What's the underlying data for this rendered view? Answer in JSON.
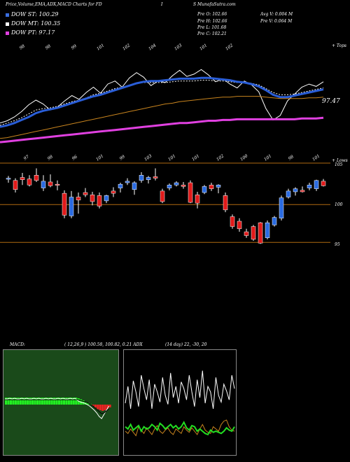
{
  "header": {
    "title": "Price,Volume,EMA,ADX,MACD Charts for FD",
    "separator": "I",
    "site": "S MunafaSutra.com"
  },
  "legend": [
    {
      "label": "DOW ST: 100.29",
      "color": "#3b6fe0"
    },
    {
      "label": "DOW MT: 100.35",
      "color": "#ffffff"
    },
    {
      "label": "DOW PT: 97.17",
      "color": "#e040e0"
    }
  ],
  "stats": {
    "open": "Pre  O: 102.66",
    "high": "Pre  H: 102.66",
    "low": "Pre  L: 101.68",
    "close": "Pre  C: 102.21",
    "avg_vol": "Avg V: 0.004  M",
    "prev_vol": "Pre  V: 0.064  M"
  },
  "ema_panel": {
    "top_label": "+ Tops",
    "bottom_label": "+ Lows",
    "last_value": "97.47",
    "top_ticks": [
      "98",
      "98",
      "99",
      "101",
      "102",
      "104",
      "103",
      "101",
      "102"
    ],
    "bottom_ticks": [
      "97",
      "98",
      "96",
      "101",
      "99",
      "103",
      "101",
      "101",
      "102",
      "100",
      "101",
      "98",
      "101"
    ]
  },
  "candle_panel": {
    "y_labels": [
      "105",
      "100",
      "95"
    ]
  },
  "macd_label": "MACD:",
  "macd_params": "( 12,26,9 ) 100.58,  100.82,  0.21 ADX",
  "adx_params": "(14  day) 22,  -30,  20",
  "colors": {
    "up": "#2a6ae0",
    "down": "#e01a1a",
    "ema_short": "#2a5ed8",
    "ema_pt": "#e040e0",
    "ema_long": "#c8841e"
  },
  "chart_data": [
    {
      "type": "candlestick",
      "title": "Price",
      "ylim": [
        93,
        106
      ],
      "y_ticks": [
        105,
        100,
        95
      ],
      "candles": [
        {
          "o": 103.4,
          "h": 103.8,
          "l": 102.9,
          "c": 103.5
        },
        {
          "o": 103.2,
          "h": 103.5,
          "l": 101.6,
          "c": 102.0
        },
        {
          "o": 103.6,
          "h": 104.2,
          "l": 102.6,
          "c": 103.3
        },
        {
          "o": 103.4,
          "h": 103.9,
          "l": 102.4,
          "c": 102.6
        },
        {
          "o": 103.9,
          "h": 104.8,
          "l": 103.0,
          "c": 103.2
        },
        {
          "o": 102.2,
          "h": 103.9,
          "l": 101.8,
          "c": 103.1
        },
        {
          "o": 103.0,
          "h": 104.0,
          "l": 102.3,
          "c": 102.5
        },
        {
          "o": 102.7,
          "h": 103.2,
          "l": 101.9,
          "c": 102.6
        },
        {
          "o": 101.5,
          "h": 101.9,
          "l": 98.2,
          "c": 98.6
        },
        {
          "o": 98.5,
          "h": 101.8,
          "l": 98.2,
          "c": 101.0
        },
        {
          "o": 101.0,
          "h": 101.6,
          "l": 98.8,
          "c": 100.6
        },
        {
          "o": 101.6,
          "h": 102.2,
          "l": 101.0,
          "c": 101.3
        },
        {
          "o": 101.3,
          "h": 101.7,
          "l": 99.9,
          "c": 100.4
        },
        {
          "o": 101.2,
          "h": 101.6,
          "l": 99.5,
          "c": 99.8
        },
        {
          "o": 100.5,
          "h": 101.3,
          "l": 100.2,
          "c": 101.2
        },
        {
          "o": 101.8,
          "h": 102.3,
          "l": 101.0,
          "c": 101.5
        },
        {
          "o": 102.2,
          "h": 102.9,
          "l": 101.6,
          "c": 102.7
        },
        {
          "o": 102.9,
          "h": 103.5,
          "l": 102.6,
          "c": 103.1
        },
        {
          "o": 102.0,
          "h": 103.1,
          "l": 101.3,
          "c": 102.9
        },
        {
          "o": 103.2,
          "h": 104.3,
          "l": 102.9,
          "c": 103.9
        },
        {
          "o": 103.3,
          "h": 103.8,
          "l": 102.8,
          "c": 103.6
        },
        {
          "o": 103.7,
          "h": 104.8,
          "l": 103.2,
          "c": 103.5
        },
        {
          "o": 101.8,
          "h": 102.1,
          "l": 100.2,
          "c": 100.4
        },
        {
          "o": 102.2,
          "h": 102.8,
          "l": 101.9,
          "c": 102.6
        },
        {
          "o": 102.6,
          "h": 103.1,
          "l": 102.4,
          "c": 102.9
        },
        {
          "o": 102.6,
          "h": 103.0,
          "l": 102.1,
          "c": 102.4
        },
        {
          "o": 102.9,
          "h": 103.2,
          "l": 100.2,
          "c": 100.3
        },
        {
          "o": 101.3,
          "h": 101.7,
          "l": 99.5,
          "c": 100.2
        },
        {
          "o": 101.6,
          "h": 102.6,
          "l": 101.4,
          "c": 102.4
        },
        {
          "o": 102.6,
          "h": 102.9,
          "l": 101.8,
          "c": 102.1
        },
        {
          "o": 102.3,
          "h": 102.7,
          "l": 101.5,
          "c": 102.6
        },
        {
          "o": 101.2,
          "h": 101.6,
          "l": 99.0,
          "c": 99.3
        },
        {
          "o": 98.4,
          "h": 98.7,
          "l": 96.8,
          "c": 97.1
        },
        {
          "o": 97.8,
          "h": 98.2,
          "l": 96.4,
          "c": 96.8
        },
        {
          "o": 96.4,
          "h": 96.8,
          "l": 95.6,
          "c": 95.9
        },
        {
          "o": 97.1,
          "h": 97.3,
          "l": 95.2,
          "c": 95.4
        },
        {
          "o": 97.6,
          "h": 97.7,
          "l": 94.8,
          "c": 94.9
        },
        {
          "o": 95.6,
          "h": 97.9,
          "l": 95.4,
          "c": 97.6
        },
        {
          "o": 97.3,
          "h": 98.5,
          "l": 97.1,
          "c": 98.3
        },
        {
          "o": 98.2,
          "h": 101.2,
          "l": 97.9,
          "c": 100.9
        },
        {
          "o": 101.0,
          "h": 102.1,
          "l": 100.8,
          "c": 101.8
        },
        {
          "o": 101.7,
          "h": 102.3,
          "l": 101.2,
          "c": 102.1
        },
        {
          "o": 101.9,
          "h": 102.4,
          "l": 101.6,
          "c": 101.7
        },
        {
          "o": 102.2,
          "h": 102.9,
          "l": 101.9,
          "c": 102.6
        },
        {
          "o": 102.1,
          "h": 103.3,
          "l": 101.8,
          "c": 103.2
        },
        {
          "o": 103.1,
          "h": 103.4,
          "l": 102.4,
          "c": 102.5
        }
      ]
    },
    {
      "type": "line",
      "title": "EMA",
      "series": [
        {
          "color": "#ffffff",
          "values": [
            96.5,
            96.8,
            97.3,
            98.0,
            98.9,
            99.5,
            99.0,
            98.2,
            98.6,
            99.4,
            100.1,
            99.6,
            100.5,
            101.2,
            100.4,
            101.6,
            102.0,
            101.2,
            102.4,
            103.1,
            102.5,
            101.4,
            102.0,
            101.8,
            102.7,
            103.4,
            102.6,
            102.9,
            103.5,
            102.8,
            101.9,
            102.3,
            101.6,
            101.1,
            102.0,
            101.5,
            100.6,
            98.4,
            96.9,
            97.5,
            99.4,
            100.3,
            101.2,
            101.6,
            101.3,
            101.9
          ]
        },
        {
          "color": "#ffffff",
          "values": [
            96.2,
            96.5,
            96.8,
            97.2,
            97.7,
            98.2,
            98.4,
            98.5,
            98.7,
            99.0,
            99.3,
            99.5,
            99.8,
            100.2,
            100.4,
            100.7,
            101.0,
            101.2,
            101.4,
            101.7,
            101.8,
            101.8,
            101.8,
            101.8,
            101.9,
            102.0,
            102.0,
            102.0,
            102.1,
            102.1,
            102.0,
            102.0,
            101.9,
            101.8,
            101.8,
            101.7,
            101.5,
            101.0,
            100.5,
            100.2,
            100.2,
            100.3,
            100.5,
            100.7,
            100.9,
            101.1
          ]
        },
        {
          "color": "#2a5ed8",
          "values": [
            96.0,
            96.2,
            96.5,
            96.9,
            97.3,
            97.8,
            98.1,
            98.3,
            98.5,
            98.8,
            99.1,
            99.4,
            99.7,
            100.0,
            100.2,
            100.5,
            100.8,
            101.1,
            101.4,
            101.7,
            101.9,
            102.0,
            102.0,
            102.1,
            102.2,
            102.3,
            102.3,
            102.3,
            102.4,
            102.4,
            102.3,
            102.2,
            102.1,
            101.9,
            101.8,
            101.6,
            101.3,
            100.8,
            100.2,
            99.9,
            99.9,
            100.1,
            100.3,
            100.5,
            100.7,
            100.9
          ]
        },
        {
          "color": "#c8841e",
          "values": [
            94.5,
            94.6,
            94.8,
            95.0,
            95.2,
            95.4,
            95.6,
            95.8,
            96.0,
            96.2,
            96.4,
            96.6,
            96.8,
            97.0,
            97.2,
            97.4,
            97.6,
            97.8,
            98.0,
            98.2,
            98.4,
            98.6,
            98.8,
            99.0,
            99.1,
            99.3,
            99.4,
            99.5,
            99.6,
            99.7,
            99.8,
            99.9,
            99.9,
            100.0,
            100.0,
            100.0,
            100.0,
            99.9,
            99.8,
            99.7,
            99.7,
            99.7,
            99.7,
            99.8,
            99.8,
            99.9
          ]
        },
        {
          "color": "#e040e0",
          "values": [
            94.0,
            94.1,
            94.2,
            94.3,
            94.4,
            94.5,
            94.6,
            94.7,
            94.8,
            94.9,
            95.0,
            95.1,
            95.2,
            95.3,
            95.4,
            95.5,
            95.6,
            95.7,
            95.8,
            95.9,
            96.0,
            96.1,
            96.2,
            96.3,
            96.4,
            96.5,
            96.5,
            96.6,
            96.7,
            96.8,
            96.8,
            96.9,
            96.9,
            97.0,
            97.0,
            97.0,
            97.0,
            97.0,
            97.0,
            97.0,
            97.0,
            97.0,
            97.1,
            97.1,
            97.1,
            97.2
          ]
        }
      ]
    },
    {
      "type": "bar",
      "title": "MACD",
      "histogram": [
        2,
        2,
        2,
        2,
        2,
        2,
        2,
        2,
        2,
        2,
        2,
        2,
        2,
        2,
        2,
        2,
        2,
        2,
        2,
        2,
        2,
        2,
        2,
        2,
        2,
        2,
        2,
        2,
        2,
        2,
        1.8,
        1.5,
        1.2,
        0.8,
        0.5,
        0.2,
        -0.3,
        -0.8,
        -1.3,
        -1.6,
        -1.8,
        -1.6,
        -1.2,
        -0.8
      ]
    },
    {
      "type": "line",
      "title": "ADX",
      "series": [
        {
          "name": "+DI",
          "color": "#ffffff",
          "values": [
            45,
            60,
            40,
            65,
            55,
            42,
            70,
            58,
            48,
            66,
            40,
            62,
            55,
            46,
            68,
            52,
            44,
            72,
            50,
            60,
            45,
            64,
            58,
            48,
            70,
            55,
            42,
            66,
            50,
            74,
            45,
            60,
            55,
            40,
            68,
            52,
            46,
            62,
            56,
            48,
            70,
            58
          ]
        },
        {
          "name": "-DI",
          "color": "#c8841e",
          "values": [
            20,
            18,
            22,
            19,
            16,
            24,
            21,
            18,
            23,
            20,
            17,
            22,
            25,
            20,
            18,
            21,
            23,
            19,
            17,
            22,
            20,
            18,
            24,
            21,
            19,
            23,
            20,
            17,
            22,
            26,
            21,
            19,
            18,
            24,
            22,
            20,
            26,
            29,
            30,
            24,
            21,
            20
          ]
        },
        {
          "name": "ADX",
          "color": "#22dd22",
          "values": [
            24,
            22,
            26,
            21,
            23,
            25,
            20,
            24,
            22,
            23,
            26,
            24,
            21,
            27,
            25,
            22,
            24,
            26,
            23,
            25,
            22,
            24,
            28,
            23,
            21,
            25,
            24,
            20,
            22,
            20,
            18,
            17,
            21,
            19,
            20,
            19,
            18,
            20,
            23,
            21,
            20,
            24
          ]
        }
      ]
    }
  ]
}
